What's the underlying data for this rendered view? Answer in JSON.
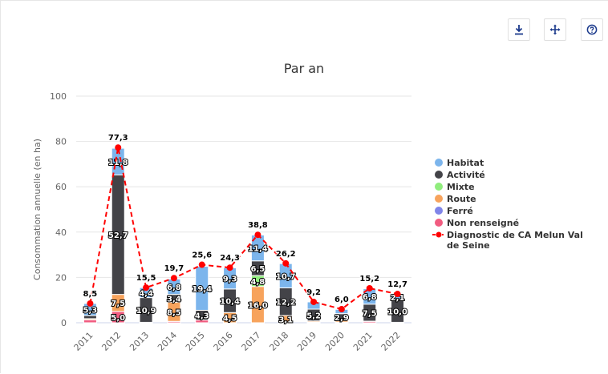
{
  "toolbar": {
    "download_icon": "download-icon",
    "move_icon": "move-icon",
    "help_icon": "help-icon"
  },
  "chart_data": {
    "type": "bar",
    "stacked": true,
    "title": "Par an",
    "ylabel": "Consommation annuelle (en ha)",
    "xlabel": "",
    "ylim": [
      0,
      100
    ],
    "yticks": [
      "0",
      "20",
      "40",
      "60",
      "80",
      "100"
    ],
    "grid": true,
    "legend_position": "right",
    "categories": [
      "2011",
      "2012",
      "2013",
      "2014",
      "2015",
      "2016",
      "2017",
      "2018",
      "2019",
      "2020",
      "2021",
      "2022"
    ],
    "series": [
      {
        "name": "Non renseigné",
        "color": "#f15c80",
        "values": [
          1.3,
          5.0,
          0.2,
          0.6,
          1.2,
          0.0,
          0.0,
          0.1,
          0.3,
          0.3,
          0.6,
          0.2
        ],
        "labels": [
          "",
          "5,0",
          "",
          "",
          "",
          "",
          "",
          "",
          "",
          "",
          "",
          ""
        ]
      },
      {
        "name": "Ferré",
        "color": "#8085e9",
        "values": [
          0,
          0,
          0,
          0,
          0,
          0,
          0,
          0,
          0,
          0,
          0,
          0
        ],
        "labels": [
          "",
          "",
          "",
          "",
          "",
          "",
          "",
          "",
          "",
          "",
          "",
          ""
        ]
      },
      {
        "name": "Route",
        "color": "#f7a35c",
        "values": [
          0.5,
          7.5,
          0.0,
          8.5,
          0.0,
          4.5,
          16.0,
          3.1,
          0.5,
          0.8,
          0.1,
          0.0
        ],
        "labels": [
          "",
          "7,5",
          "",
          "8,5",
          "",
          "4,5",
          "16,0",
          "3,1",
          "",
          "",
          "",
          ""
        ]
      },
      {
        "name": "Mixte",
        "color": "#90ed7d",
        "values": [
          0,
          0,
          0,
          0,
          0,
          0,
          4.8,
          0,
          0,
          0,
          0,
          0
        ],
        "labels": [
          "",
          "",
          "",
          "",
          "",
          "",
          "4,8",
          "",
          "",
          "",
          "",
          ""
        ]
      },
      {
        "name": "Activité",
        "color": "#434348",
        "values": [
          1.4,
          52.7,
          10.9,
          3.4,
          4.3,
          10.4,
          6.5,
          12.2,
          5.2,
          2.9,
          7.5,
          10.0
        ],
        "labels": [
          "",
          "52,7",
          "10,9",
          "3,4",
          "4,3",
          "10,4",
          "6,5",
          "12,2",
          "5,2",
          "2,9",
          "7,5",
          "10,0"
        ]
      },
      {
        "name": "Habitat",
        "color": "#7cb5ec",
        "values": [
          5.3,
          11.8,
          4.4,
          6.8,
          19.4,
          9.3,
          11.4,
          10.7,
          3.2,
          1.9,
          6.8,
          2.1
        ],
        "labels": [
          "5,3",
          "11,8",
          "4,4",
          "6,8",
          "19,4",
          "9,3",
          "11,4",
          "10,7",
          "",
          "",
          "6,8",
          "2,1"
        ]
      }
    ],
    "line_series": {
      "name": "Diagnostic de CA Melun Val de Seine",
      "color": "#ff0000",
      "values": [
        8.5,
        77.3,
        15.5,
        19.7,
        25.6,
        24.3,
        38.8,
        26.2,
        9.2,
        6.0,
        15.2,
        12.7
      ],
      "labels": [
        "8,5",
        "77,3",
        "15,5",
        "19,7",
        "25,6",
        "24,3",
        "38,8",
        "26,2",
        "9,2",
        "6,0",
        "15,2",
        "12,7"
      ]
    },
    "legend": [
      {
        "name": "Habitat",
        "color": "#7cb5ec",
        "kind": "dot"
      },
      {
        "name": "Activité",
        "color": "#434348",
        "kind": "dot"
      },
      {
        "name": "Mixte",
        "color": "#90ed7d",
        "kind": "dot"
      },
      {
        "name": "Route",
        "color": "#f7a35c",
        "kind": "dot"
      },
      {
        "name": "Ferré",
        "color": "#8085e9",
        "kind": "dot"
      },
      {
        "name": "Non renseigné",
        "color": "#f15c80",
        "kind": "dot"
      },
      {
        "name": "Diagnostic de CA Melun Val de Seine",
        "color": "#ff0000",
        "kind": "line",
        "lines": [
          "Diagnostic de CA Melun Val",
          "de Seine"
        ]
      }
    ]
  }
}
